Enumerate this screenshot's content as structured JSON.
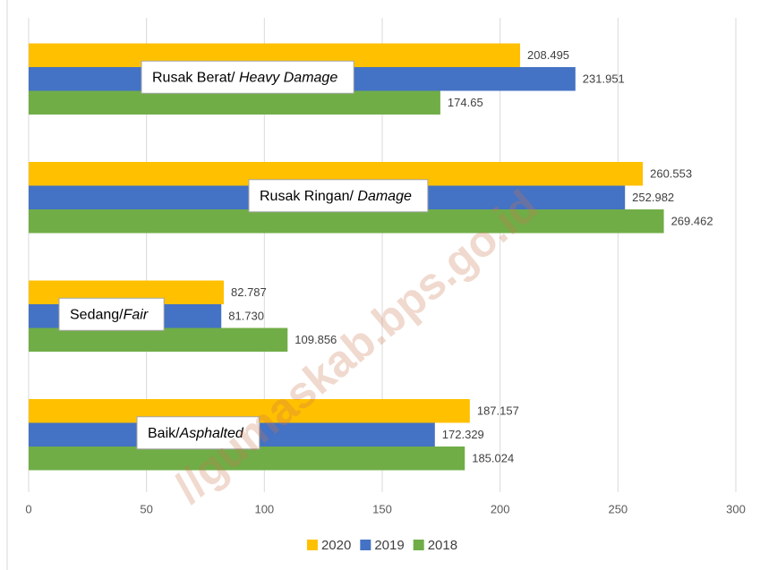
{
  "chart_data": {
    "type": "hbar",
    "categories": [
      [
        "Rusak Berat/ ",
        "Heavy Damage"
      ],
      [
        "Rusak Ringan/ ",
        "Damage"
      ],
      [
        "Sedang/",
        "Fair"
      ],
      [
        "Baik/",
        "Asphalted"
      ]
    ],
    "series": [
      {
        "name": "2020",
        "color": "#ffc000",
        "values": [
          208.495,
          260.553,
          82.787,
          187.157
        ]
      },
      {
        "name": "2019",
        "color": "#4472c4",
        "values": [
          231.951,
          252.982,
          81.73,
          172.329
        ],
        "value_labels": [
          "231.951",
          "252.982",
          "81.730",
          "172.329"
        ]
      },
      {
        "name": "2018",
        "color": "#70ad47",
        "values": [
          174.65,
          269.462,
          109.856,
          185.024
        ]
      }
    ],
    "xlim": [
      0,
      300
    ],
    "xticks": [
      0,
      50,
      100,
      150,
      200,
      250,
      300
    ],
    "grid": true,
    "legend": "bottom",
    "watermark": "//gumaskab.bps.go.id"
  }
}
